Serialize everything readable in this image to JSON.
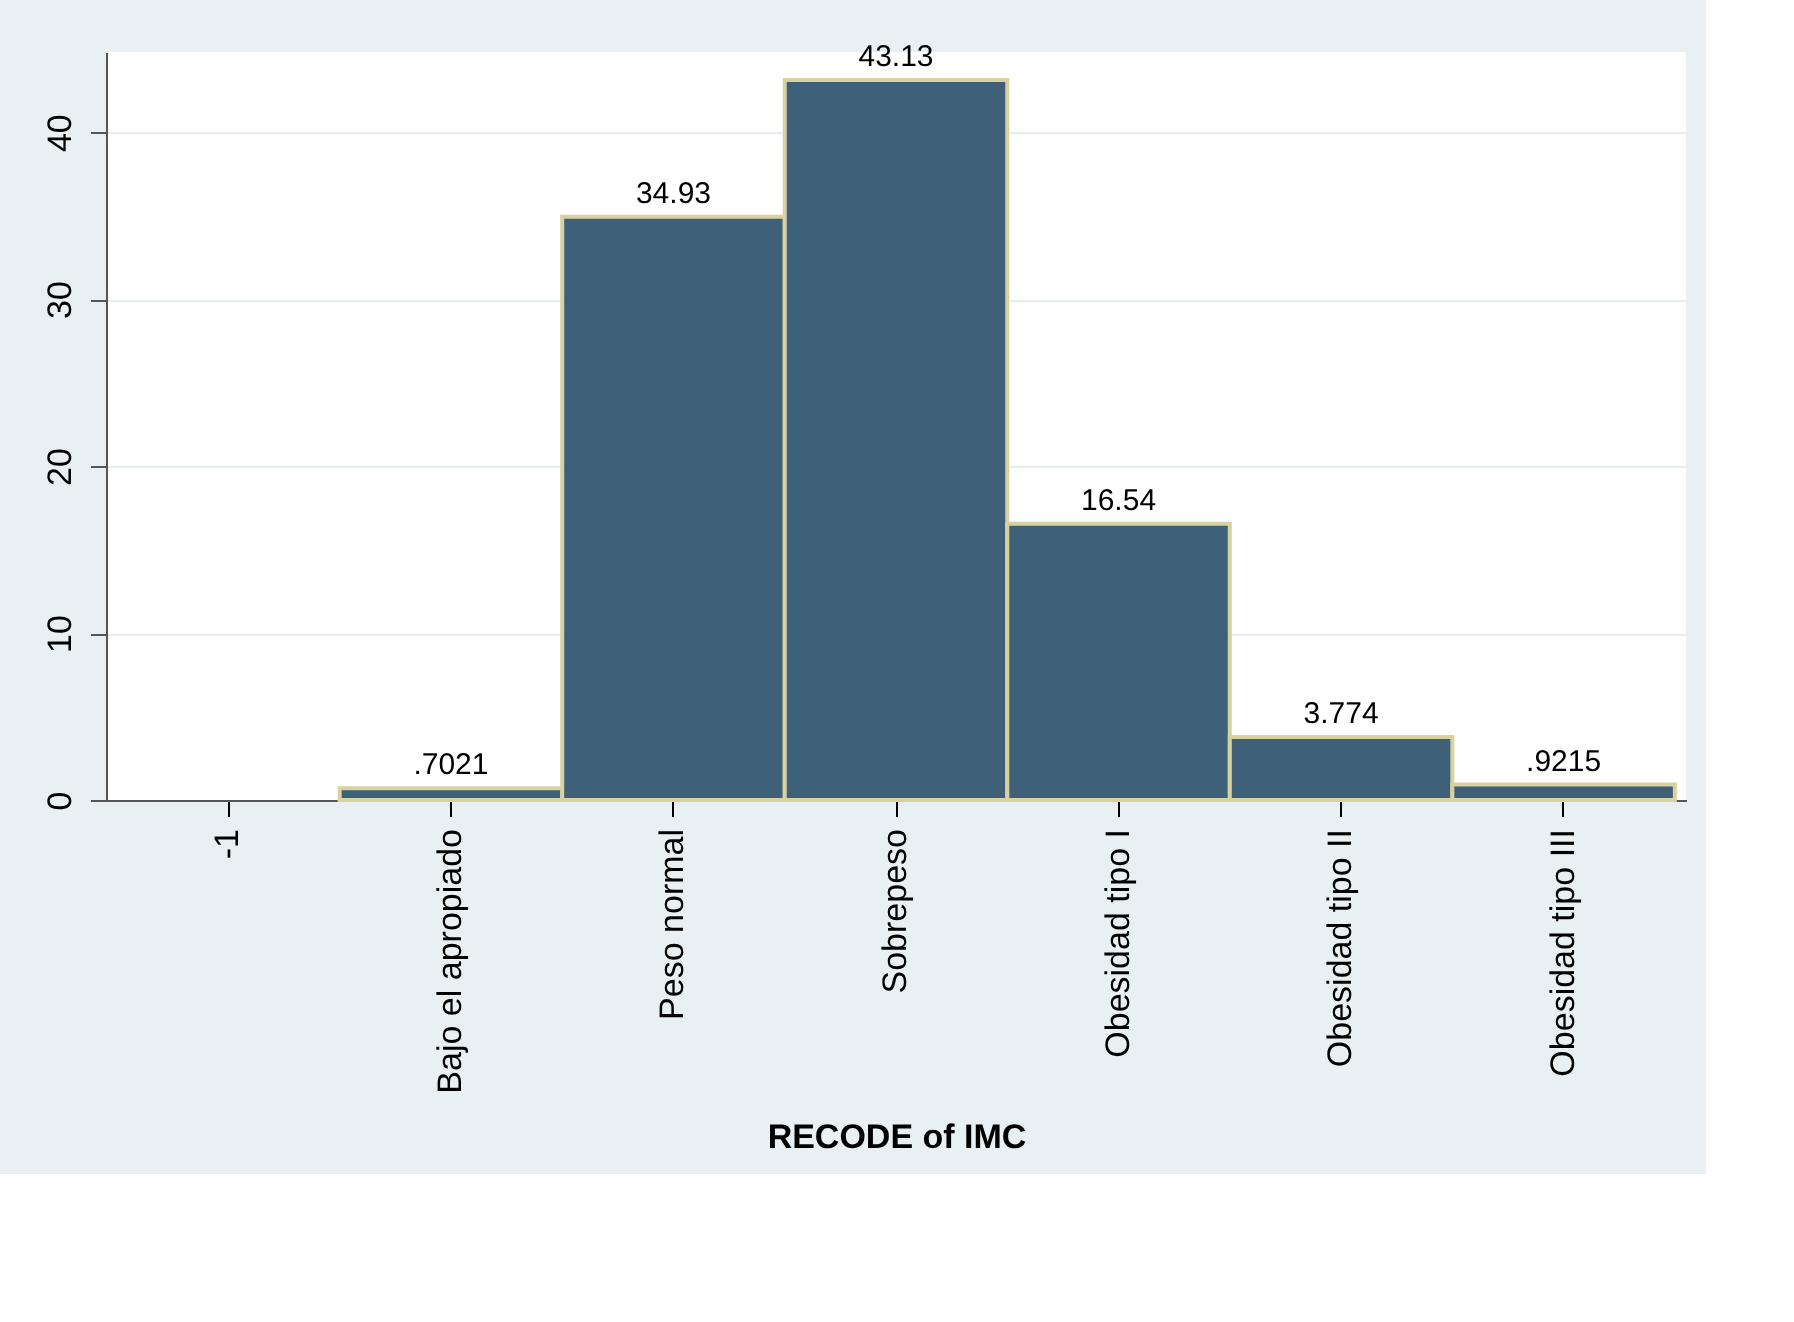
{
  "chart_data": {
    "type": "bar",
    "xlabel": "RECODE of IMC",
    "categories": [
      "-1",
      "Bajo el apropiado",
      "Peso normal",
      "Sobrepeso",
      "Obesidad tipo I",
      "Obesidad tipo II",
      "Obesidad tipo III"
    ],
    "values": [
      null,
      0.7021,
      34.93,
      43.13,
      16.54,
      3.774,
      0.9215
    ],
    "value_labels": [
      null,
      ".7021",
      "34.93",
      "43.13",
      "16.54",
      "3.774",
      ".9215"
    ],
    "color": "#3f6079",
    "ylim": [
      0,
      44.8
    ],
    "yticks": [
      0,
      10,
      20,
      30,
      40
    ],
    "grid": "y"
  }
}
